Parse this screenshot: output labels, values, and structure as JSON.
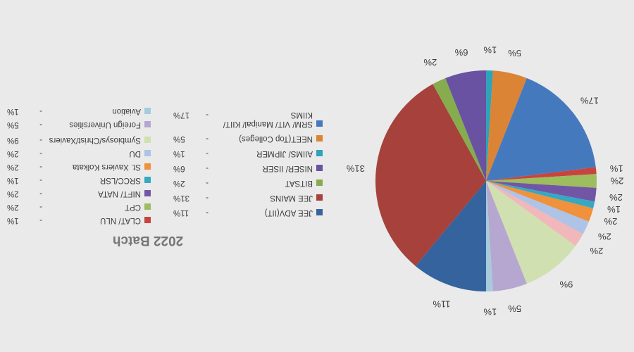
{
  "canvas": {
    "background": "#EAEAEA",
    "rotation_deg": 180,
    "text_color": "#3C3C3C"
  },
  "title": {
    "text": "2022 Batch",
    "color": "#767676"
  },
  "chart_data": {
    "type": "pie",
    "title": "2022 Batch",
    "value_unit": "%",
    "start_angle_deg": 0,
    "direction": "clockwise",
    "rendered_rotation_deg": 180,
    "label_format": "{value}%",
    "legend_value_format": "- {value}%",
    "slices": [
      {
        "label": "JEE ADV(IIT)",
        "value": 11,
        "color": "#35639E",
        "in_legend": true
      },
      {
        "label": "JEE MAINS",
        "value": 31,
        "color": "#A6413C",
        "in_legend": true
      },
      {
        "label": "BITSAT",
        "value": 2,
        "color": "#86AC4E",
        "in_legend": true
      },
      {
        "label": "NISER/ IISER",
        "value": 6,
        "color": "#6852A1",
        "in_legend": true
      },
      {
        "label": "AIIMS/ JIPMER",
        "value": 1,
        "color": "#2FA3B9",
        "in_legend": true
      },
      {
        "label": "NEET(Top Colleges)",
        "value": 5,
        "color": "#DB8435",
        "in_legend": true
      },
      {
        "label": "SRM/ VIT/ Manipal/ KIIT/ KIIMS",
        "value": 17,
        "color": "#4579BE",
        "in_legend": true,
        "legend_lines": [
          "SRM/ VIT/ Manipal/ KIIT/",
          "KIIMS"
        ]
      },
      {
        "label": "CLAT/ NLU",
        "value": 1,
        "color": "#C8453F",
        "in_legend": true
      },
      {
        "label": "CPT",
        "value": 2,
        "color": "#9DBD5F",
        "in_legend": true
      },
      {
        "label": "NIFT/ NATA",
        "value": 2,
        "color": "#7256A5",
        "in_legend": true
      },
      {
        "label": "SRCC/LSR",
        "value": 1,
        "color": "#35A9C2",
        "in_legend": true
      },
      {
        "label": "St. Xaviers Kolkata",
        "value": 2,
        "color": "#F0913C",
        "in_legend": true
      },
      {
        "label": "DU",
        "value": 2,
        "color": "#AFC3E7",
        "in_legend": true
      },
      {
        "label": "",
        "value": 2,
        "color": "#F1B7BA",
        "in_legend": false
      },
      {
        "label": "Symbiosys/Christ/Xaviers",
        "value": 9,
        "color": "#D0E0B0",
        "in_legend": true
      },
      {
        "label": "Foreign Universities",
        "value": 5,
        "color": "#B5A7D0",
        "in_legend": true
      },
      {
        "label": "Aviation",
        "value": 1,
        "color": "#A5CBDC",
        "in_legend": true
      }
    ],
    "legend_columns": [
      [
        0,
        1,
        2,
        3,
        4,
        5,
        6
      ],
      [
        7,
        8,
        9,
        10,
        11,
        12,
        14,
        15,
        16
      ]
    ]
  }
}
